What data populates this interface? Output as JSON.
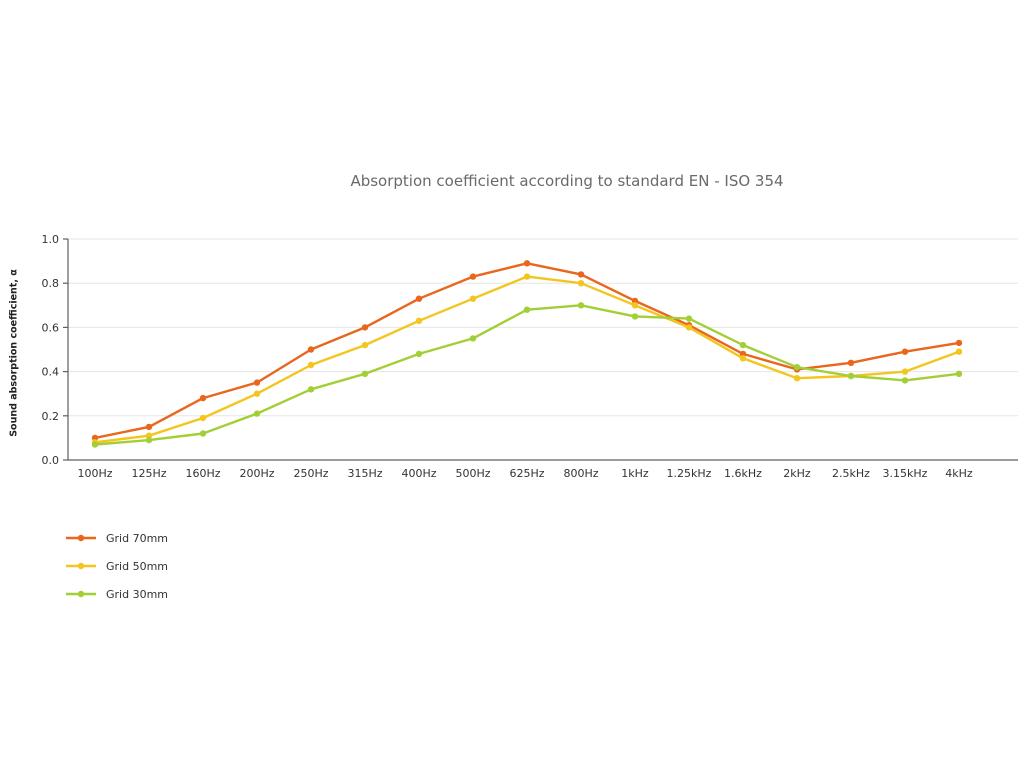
{
  "chart_data": {
    "type": "line",
    "title": "Absorption coefficient according to standard EN - ISO 354",
    "ylabel": "Sound absorption coefficient, α",
    "xlabel": "",
    "ylim": [
      0.0,
      1.0
    ],
    "ytick_labels": [
      "0.0",
      "0.2",
      "0.4",
      "0.6",
      "0.8",
      "1.0"
    ],
    "grid": "horizontal",
    "legend_position": "bottom-left",
    "categories": [
      "100Hz",
      "125Hz",
      "160Hz",
      "200Hz",
      "250Hz",
      "315Hz",
      "400Hz",
      "500Hz",
      "625Hz",
      "800Hz",
      "1kHz",
      "1.25kHz",
      "1.6kHz",
      "2kHz",
      "2.5kHz",
      "3.15kHz",
      "4kHz"
    ],
    "series": [
      {
        "name": "Grid 70mm",
        "color": "#e9661d",
        "values": [
          0.1,
          0.15,
          0.28,
          0.35,
          0.5,
          0.6,
          0.73,
          0.83,
          0.89,
          0.84,
          0.72,
          0.61,
          0.48,
          0.41,
          0.44,
          0.49,
          0.53
        ]
      },
      {
        "name": "Grid 50mm",
        "color": "#f3c51f",
        "values": [
          0.08,
          0.11,
          0.19,
          0.3,
          0.43,
          0.52,
          0.63,
          0.73,
          0.83,
          0.8,
          0.7,
          0.6,
          0.46,
          0.37,
          0.38,
          0.4,
          0.49
        ]
      },
      {
        "name": "Grid 30mm",
        "color": "#a2cf36",
        "values": [
          0.07,
          0.09,
          0.12,
          0.21,
          0.32,
          0.39,
          0.48,
          0.55,
          0.68,
          0.7,
          0.65,
          0.64,
          0.52,
          0.42,
          0.38,
          0.36,
          0.39
        ]
      }
    ]
  }
}
